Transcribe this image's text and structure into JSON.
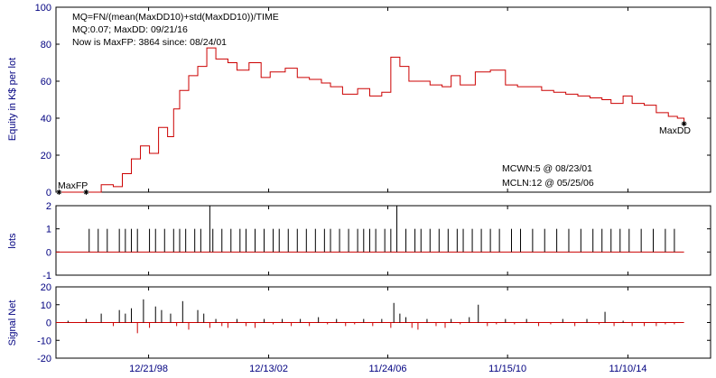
{
  "colors": {
    "equity": "#cc0000",
    "negative": "#cc0000",
    "positive": "#000000",
    "zero_line": "#cc0000",
    "tick_text": "#000080"
  },
  "annotations": {
    "line1": "MQ=FN/(mean(MaxDD10)+std(MaxDD10))/TIME",
    "line2": "MQ:0.07; MaxDD: 09/21/16",
    "line3": "Now is MaxFP: 3864 since: 08/24/01",
    "maxfp": "MaxFP",
    "maxdd": "MaxDD",
    "mcwn": "MCWN:5 @ 08/23/01",
    "mcln": "MCLN:12 @ 05/25/06"
  },
  "chart_data": [
    {
      "type": "line",
      "panel": "equity",
      "xlabel": "",
      "ylabel": "Equity in K$ per lot",
      "ylim": [
        0,
        100
      ],
      "yticks": [
        0,
        20,
        40,
        60,
        80,
        100
      ],
      "xticks": [
        "12/21/98",
        "12/13/02",
        "11/24/06",
        "11/15/10",
        "11/10/14"
      ],
      "xrange": [
        1995.9,
        2017.6
      ],
      "x": [
        1996.0,
        1996.9,
        1997.4,
        1997.8,
        1998.1,
        1998.4,
        1998.7,
        1999.0,
        1999.3,
        1999.6,
        1999.8,
        2000.0,
        2000.3,
        2000.6,
        2000.9,
        2001.2,
        2001.6,
        2001.9,
        2002.3,
        2002.7,
        2003.0,
        2003.5,
        2003.9,
        2004.3,
        2004.7,
        2005.0,
        2005.4,
        2005.9,
        2006.3,
        2006.7,
        2007.0,
        2007.3,
        2007.6,
        2007.9,
        2008.3,
        2008.7,
        2009.0,
        2009.3,
        2009.8,
        2010.3,
        2010.8,
        2011.2,
        2011.6,
        2012.0,
        2012.4,
        2012.8,
        2013.2,
        2013.6,
        2014.0,
        2014.3,
        2014.7,
        2015.0,
        2015.4,
        2015.8,
        2016.2,
        2016.5,
        2016.72
      ],
      "values": [
        0,
        0,
        4,
        3,
        10,
        18,
        25,
        21,
        35,
        30,
        45,
        55,
        63,
        68,
        78,
        72,
        70,
        66,
        70,
        62,
        65,
        67,
        62,
        61,
        59,
        57,
        53,
        56,
        52,
        54,
        73,
        68,
        60,
        60,
        58,
        57,
        63,
        58,
        65,
        66,
        58,
        57,
        57,
        55,
        54,
        53,
        52,
        51,
        50,
        48,
        52,
        48,
        47,
        43,
        41,
        40,
        37
      ],
      "maxfp": [
        1996.0,
        0
      ],
      "maxfp2": [
        1996.9,
        0
      ],
      "maxdd": [
        2016.72,
        37
      ]
    },
    {
      "type": "bar",
      "panel": "lots",
      "ylabel": "lots",
      "ylim": [
        -1,
        2
      ],
      "yticks": [
        -1,
        0,
        1,
        2
      ],
      "x": [
        1997.0,
        1997.3,
        1997.6,
        1998.0,
        1998.2,
        1998.4,
        1998.6,
        1999.0,
        1999.2,
        1999.5,
        1999.8,
        2000.0,
        2000.2,
        2000.5,
        2000.7,
        2001.0,
        2001.1,
        2001.4,
        2001.7,
        2002.0,
        2002.2,
        2002.5,
        2002.8,
        2003.1,
        2003.3,
        2003.6,
        2003.9,
        2004.2,
        2004.5,
        2004.8,
        2005.0,
        2005.3,
        2005.6,
        2005.9,
        2006.1,
        2006.3,
        2006.5,
        2006.8,
        2007.0,
        2007.2,
        2007.5,
        2007.8,
        2008.0,
        2008.3,
        2008.6,
        2008.9,
        2009.2,
        2009.4,
        2009.7,
        2010.0,
        2010.3,
        2010.6,
        2011.0,
        2011.3,
        2011.7,
        2012.1,
        2012.5,
        2012.9,
        2013.3,
        2013.7,
        2014.0,
        2014.3,
        2014.6,
        2014.9,
        2015.3,
        2015.7,
        2016.1,
        2016.4
      ],
      "values": [
        1,
        1,
        1,
        1,
        1,
        1,
        1,
        1,
        1,
        1,
        1,
        1,
        1,
        1,
        1,
        2,
        1,
        1,
        1,
        1,
        1,
        1,
        1,
        1,
        1,
        1,
        1,
        1,
        1,
        1,
        1,
        1,
        1,
        1,
        1,
        1,
        1,
        1,
        1,
        2,
        1,
        1,
        1,
        1,
        1,
        1,
        1,
        1,
        1,
        1,
        1,
        1,
        1,
        1,
        1,
        1,
        1,
        1,
        1,
        1,
        1,
        1,
        1,
        1,
        1,
        1,
        1,
        1
      ]
    },
    {
      "type": "bar",
      "panel": "signal",
      "ylabel": "Signal Net",
      "ylim": [
        -20,
        20
      ],
      "yticks": [
        -20,
        -10,
        0,
        10,
        20
      ],
      "x": [
        1996.3,
        1996.9,
        1997.4,
        1997.8,
        1998.0,
        1998.2,
        1998.4,
        1998.6,
        1998.8,
        1999.0,
        1999.2,
        1999.4,
        1999.7,
        1999.9,
        2000.1,
        2000.3,
        2000.6,
        2000.8,
        2001.0,
        2001.2,
        2001.4,
        2001.6,
        2001.9,
        2002.2,
        2002.5,
        2002.8,
        2003.1,
        2003.4,
        2003.7,
        2004.0,
        2004.3,
        2004.6,
        2004.9,
        2005.2,
        2005.5,
        2005.8,
        2006.1,
        2006.4,
        2006.7,
        2007.0,
        2007.1,
        2007.3,
        2007.5,
        2007.7,
        2007.9,
        2008.2,
        2008.5,
        2008.8,
        2009.0,
        2009.3,
        2009.6,
        2009.9,
        2010.2,
        2010.5,
        2010.8,
        2011.1,
        2011.5,
        2011.9,
        2012.3,
        2012.7,
        2013.1,
        2013.5,
        2013.9,
        2014.1,
        2014.4,
        2014.7,
        2015.0,
        2015.4,
        2015.8,
        2016.1,
        2016.4
      ],
      "values": [
        1,
        2,
        5,
        -2,
        7,
        5,
        8,
        -6,
        13,
        -3,
        9,
        7,
        5,
        -2,
        12,
        -4,
        7,
        5,
        -3,
        2,
        -2,
        -3,
        2,
        -2,
        -3,
        2,
        -1,
        2,
        -2,
        2,
        -2,
        3,
        -1,
        2,
        -2,
        -1,
        2,
        -2,
        2,
        -3,
        11,
        5,
        3,
        -3,
        -4,
        2,
        -2,
        -3,
        2,
        -1,
        3,
        10,
        -2,
        -1,
        2,
        -1,
        2,
        -2,
        -1,
        2,
        -2,
        2,
        -1,
        6,
        -2,
        1,
        -2,
        -2,
        -2,
        -1,
        -1
      ]
    }
  ]
}
